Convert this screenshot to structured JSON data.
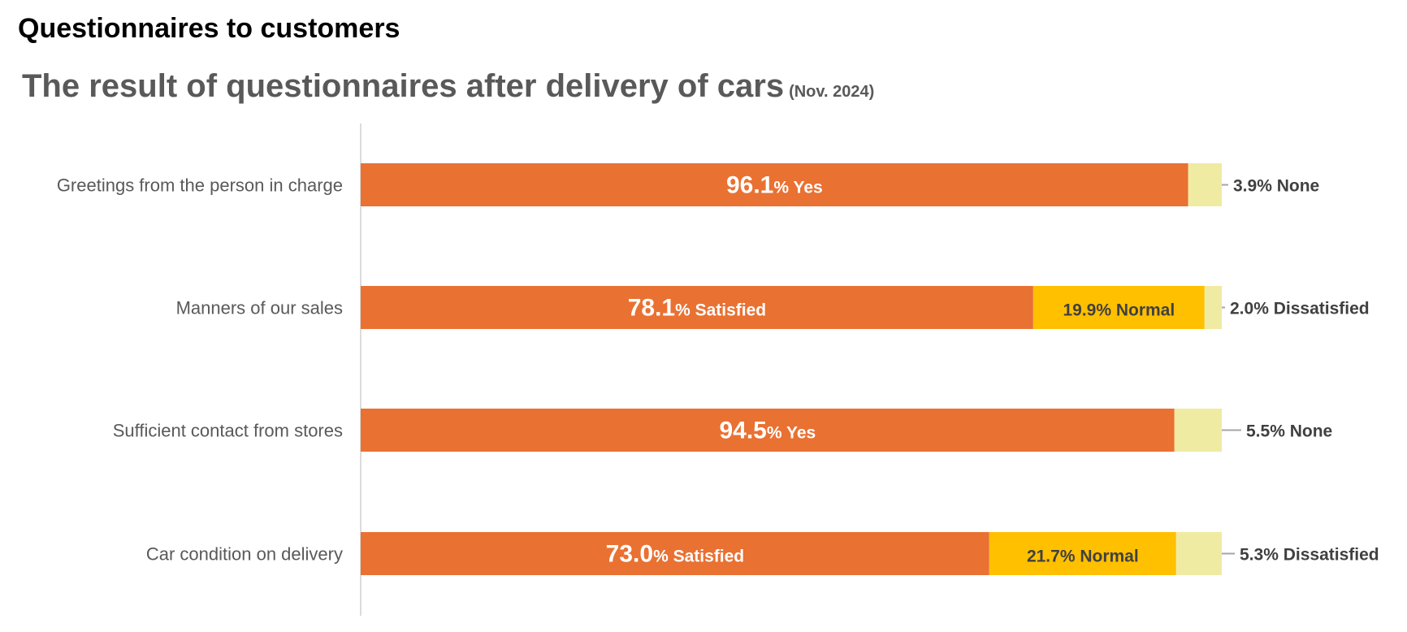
{
  "header": {
    "title": "Questionnaires to customers",
    "subtitle": "The result of questionnaires after delivery of cars",
    "subtitle_date": "(Nov. 2024)"
  },
  "chart_data": {
    "type": "bar",
    "orientation": "horizontal",
    "stacked": true,
    "unit": "%",
    "xlim": [
      0,
      100
    ],
    "grid": false,
    "colors": {
      "primary": "#E97132",
      "middle": "#FFC000",
      "last": "#EFEBA3"
    },
    "categories": [
      "Greetings from the person in charge",
      "Manners of our sales",
      "Sufficient contact from stores",
      "Car condition on delivery"
    ],
    "rows": [
      {
        "segments": [
          {
            "value": 96.1,
            "value_label": "96.1",
            "label": "% Yes"
          },
          {
            "value": 3.9,
            "value_label": "3.9",
            "label": "% None"
          }
        ]
      },
      {
        "segments": [
          {
            "value": 78.1,
            "value_label": "78.1",
            "label": "% Satisfied"
          },
          {
            "value": 19.9,
            "value_label": "19.9",
            "label": "% Normal"
          },
          {
            "value": 2.0,
            "value_label": "2.0",
            "label": "% Dissatisfied"
          }
        ]
      },
      {
        "segments": [
          {
            "value": 94.5,
            "value_label": "94.5",
            "label": "% Yes"
          },
          {
            "value": 5.5,
            "value_label": "5.5",
            "label": "% None"
          }
        ]
      },
      {
        "segments": [
          {
            "value": 73.0,
            "value_label": "73.0",
            "label": "% Satisfied"
          },
          {
            "value": 21.7,
            "value_label": "21.7",
            "label": "% Normal"
          },
          {
            "value": 5.3,
            "value_label": "5.3",
            "label": "% Dissatisfied"
          }
        ]
      }
    ]
  }
}
